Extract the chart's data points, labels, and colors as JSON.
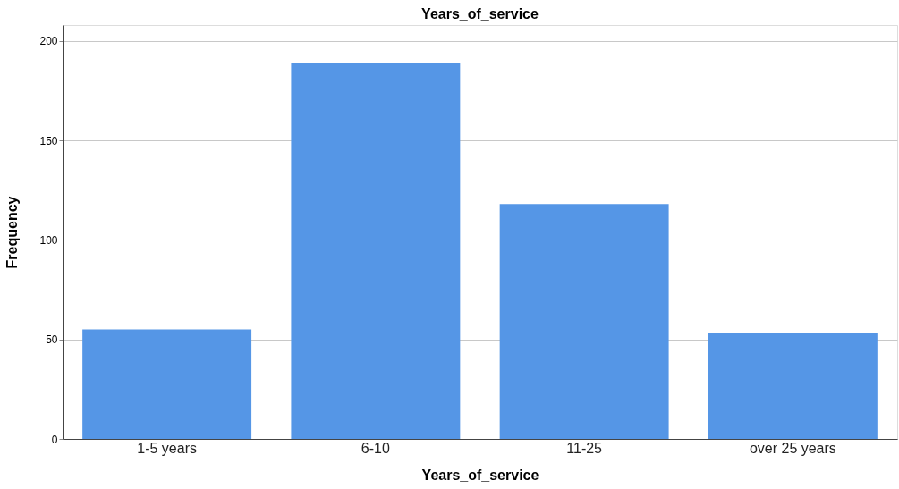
{
  "chart_data": {
    "type": "bar",
    "title": "Years_of_service",
    "xlabel": "Years_of_service",
    "ylabel": "Frequency",
    "categories": [
      "1-5 years",
      "6-10",
      "11-25",
      "over 25 years"
    ],
    "values": [
      55,
      189,
      118,
      53
    ],
    "color": "#5596e6",
    "ylim": [
      0,
      208
    ],
    "yticks": [
      0,
      50,
      100,
      150,
      200
    ],
    "grid": "y"
  }
}
